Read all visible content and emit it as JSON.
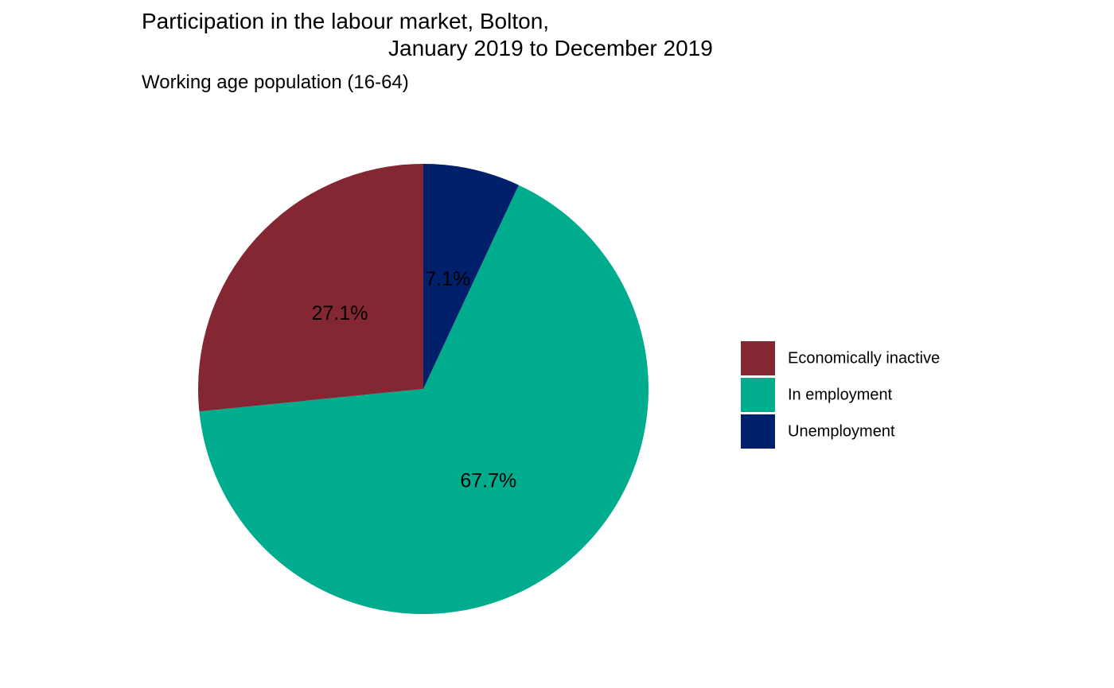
{
  "chart_data": {
    "type": "pie",
    "title": "Participation in the labour market, Bolton,",
    "title_line_2": "January 2019 to December 2019",
    "subtitle": "Working age population (16-64)",
    "categories": [
      "Economically inactive",
      "In employment",
      "Unemployment"
    ],
    "values": [
      27.1,
      67.7,
      7.1
    ],
    "labels": [
      "27.1%",
      "67.7%",
      "7.1%"
    ],
    "colors": [
      "#852633",
      "#00AC8E",
      "#00206B"
    ],
    "start_angle_deg": 0,
    "direction": "counterclockwise",
    "legend": {
      "position": "right",
      "title": ""
    }
  }
}
